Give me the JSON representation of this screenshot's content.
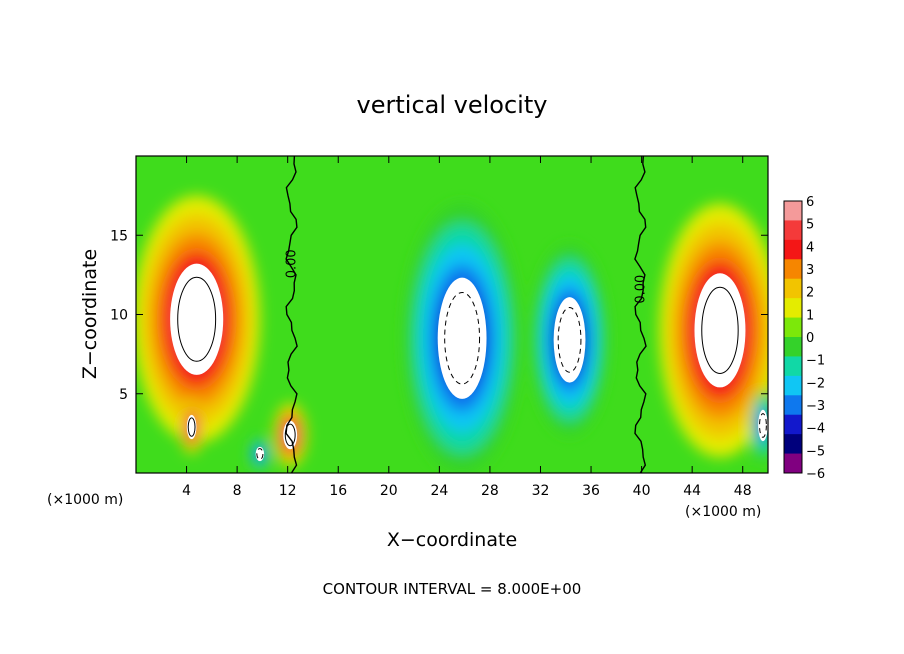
{
  "chart_data": {
    "type": "heatmap",
    "title": "vertical velocity",
    "xlabel": "X−coordinate",
    "ylabel": "Z−coordinate",
    "x_unit_left": "(×1000 m)",
    "x_unit_right": "(×1000 m)",
    "footer": "CONTOUR INTERVAL = 8.000E+00",
    "xlim": [
      0,
      50
    ],
    "ylim": [
      0,
      20
    ],
    "x_ticks": [
      4,
      8,
      12,
      16,
      20,
      24,
      28,
      32,
      36,
      40,
      44,
      48
    ],
    "x_tick_labels": [
      "4",
      "8",
      "12",
      "16",
      "20",
      "24",
      "28",
      "32",
      "36",
      "40",
      "44",
      "48"
    ],
    "y_ticks": [
      5,
      10,
      15
    ],
    "y_tick_labels": [
      "5",
      "10",
      "15"
    ],
    "contour_labels": [
      {
        "text": "0.00",
        "x": 12.3,
        "z": 13.2
      },
      {
        "text": "0.00",
        "x": 39.9,
        "z": 11.6
      }
    ],
    "colorbar": {
      "levels": [
        6,
        5,
        4,
        3,
        2,
        1,
        0,
        -1,
        -2,
        -3,
        -4,
        -5,
        -6
      ],
      "labels": [
        "6",
        "5",
        "4",
        "3",
        "2",
        "1",
        "0",
        "−1",
        "−2",
        "−3",
        "−4",
        "−5",
        "−6"
      ],
      "colors": [
        "#f49a9a",
        "#f43a3a",
        "#f41616",
        "#f68600",
        "#f2c400",
        "#e4ec00",
        "#7ce80a",
        "#34d22a",
        "#11d8a6",
        "#10c6f4",
        "#0e78ee",
        "#1218cc",
        "#00007c",
        "#800080"
      ]
    },
    "features": [
      {
        "kind": "updraft",
        "x": 4.8,
        "z": 9.7,
        "rx": 5.0,
        "rz": 7.8,
        "peak": 6
      },
      {
        "kind": "updraft",
        "x": 46.2,
        "z": 9.0,
        "rx": 4.8,
        "rz": 8.0,
        "peak": 6
      },
      {
        "kind": "updraft",
        "x": 12.2,
        "z": 2.4,
        "rx": 1.3,
        "rz": 2.0,
        "peak": 6
      },
      {
        "kind": "updraft",
        "x": 4.4,
        "z": 2.9,
        "rx": 0.9,
        "rz": 1.7,
        "peak": 6
      },
      {
        "kind": "downdraft",
        "x": 25.8,
        "z": 8.5,
        "rx": 4.6,
        "rz": 8.5,
        "peak": -6
      },
      {
        "kind": "downdraft",
        "x": 34.3,
        "z": 8.4,
        "rx": 3.0,
        "rz": 6.0,
        "peak": -6
      },
      {
        "kind": "downdraft",
        "x": 9.8,
        "z": 1.2,
        "rx": 0.8,
        "rz": 1.0,
        "peak": -5
      },
      {
        "kind": "downdraft",
        "x": 49.6,
        "z": 3.0,
        "rx": 0.9,
        "rz": 2.2,
        "peak": -5
      }
    ]
  },
  "colors": {
    "background": "#ffffff",
    "axis": "#000000"
  }
}
